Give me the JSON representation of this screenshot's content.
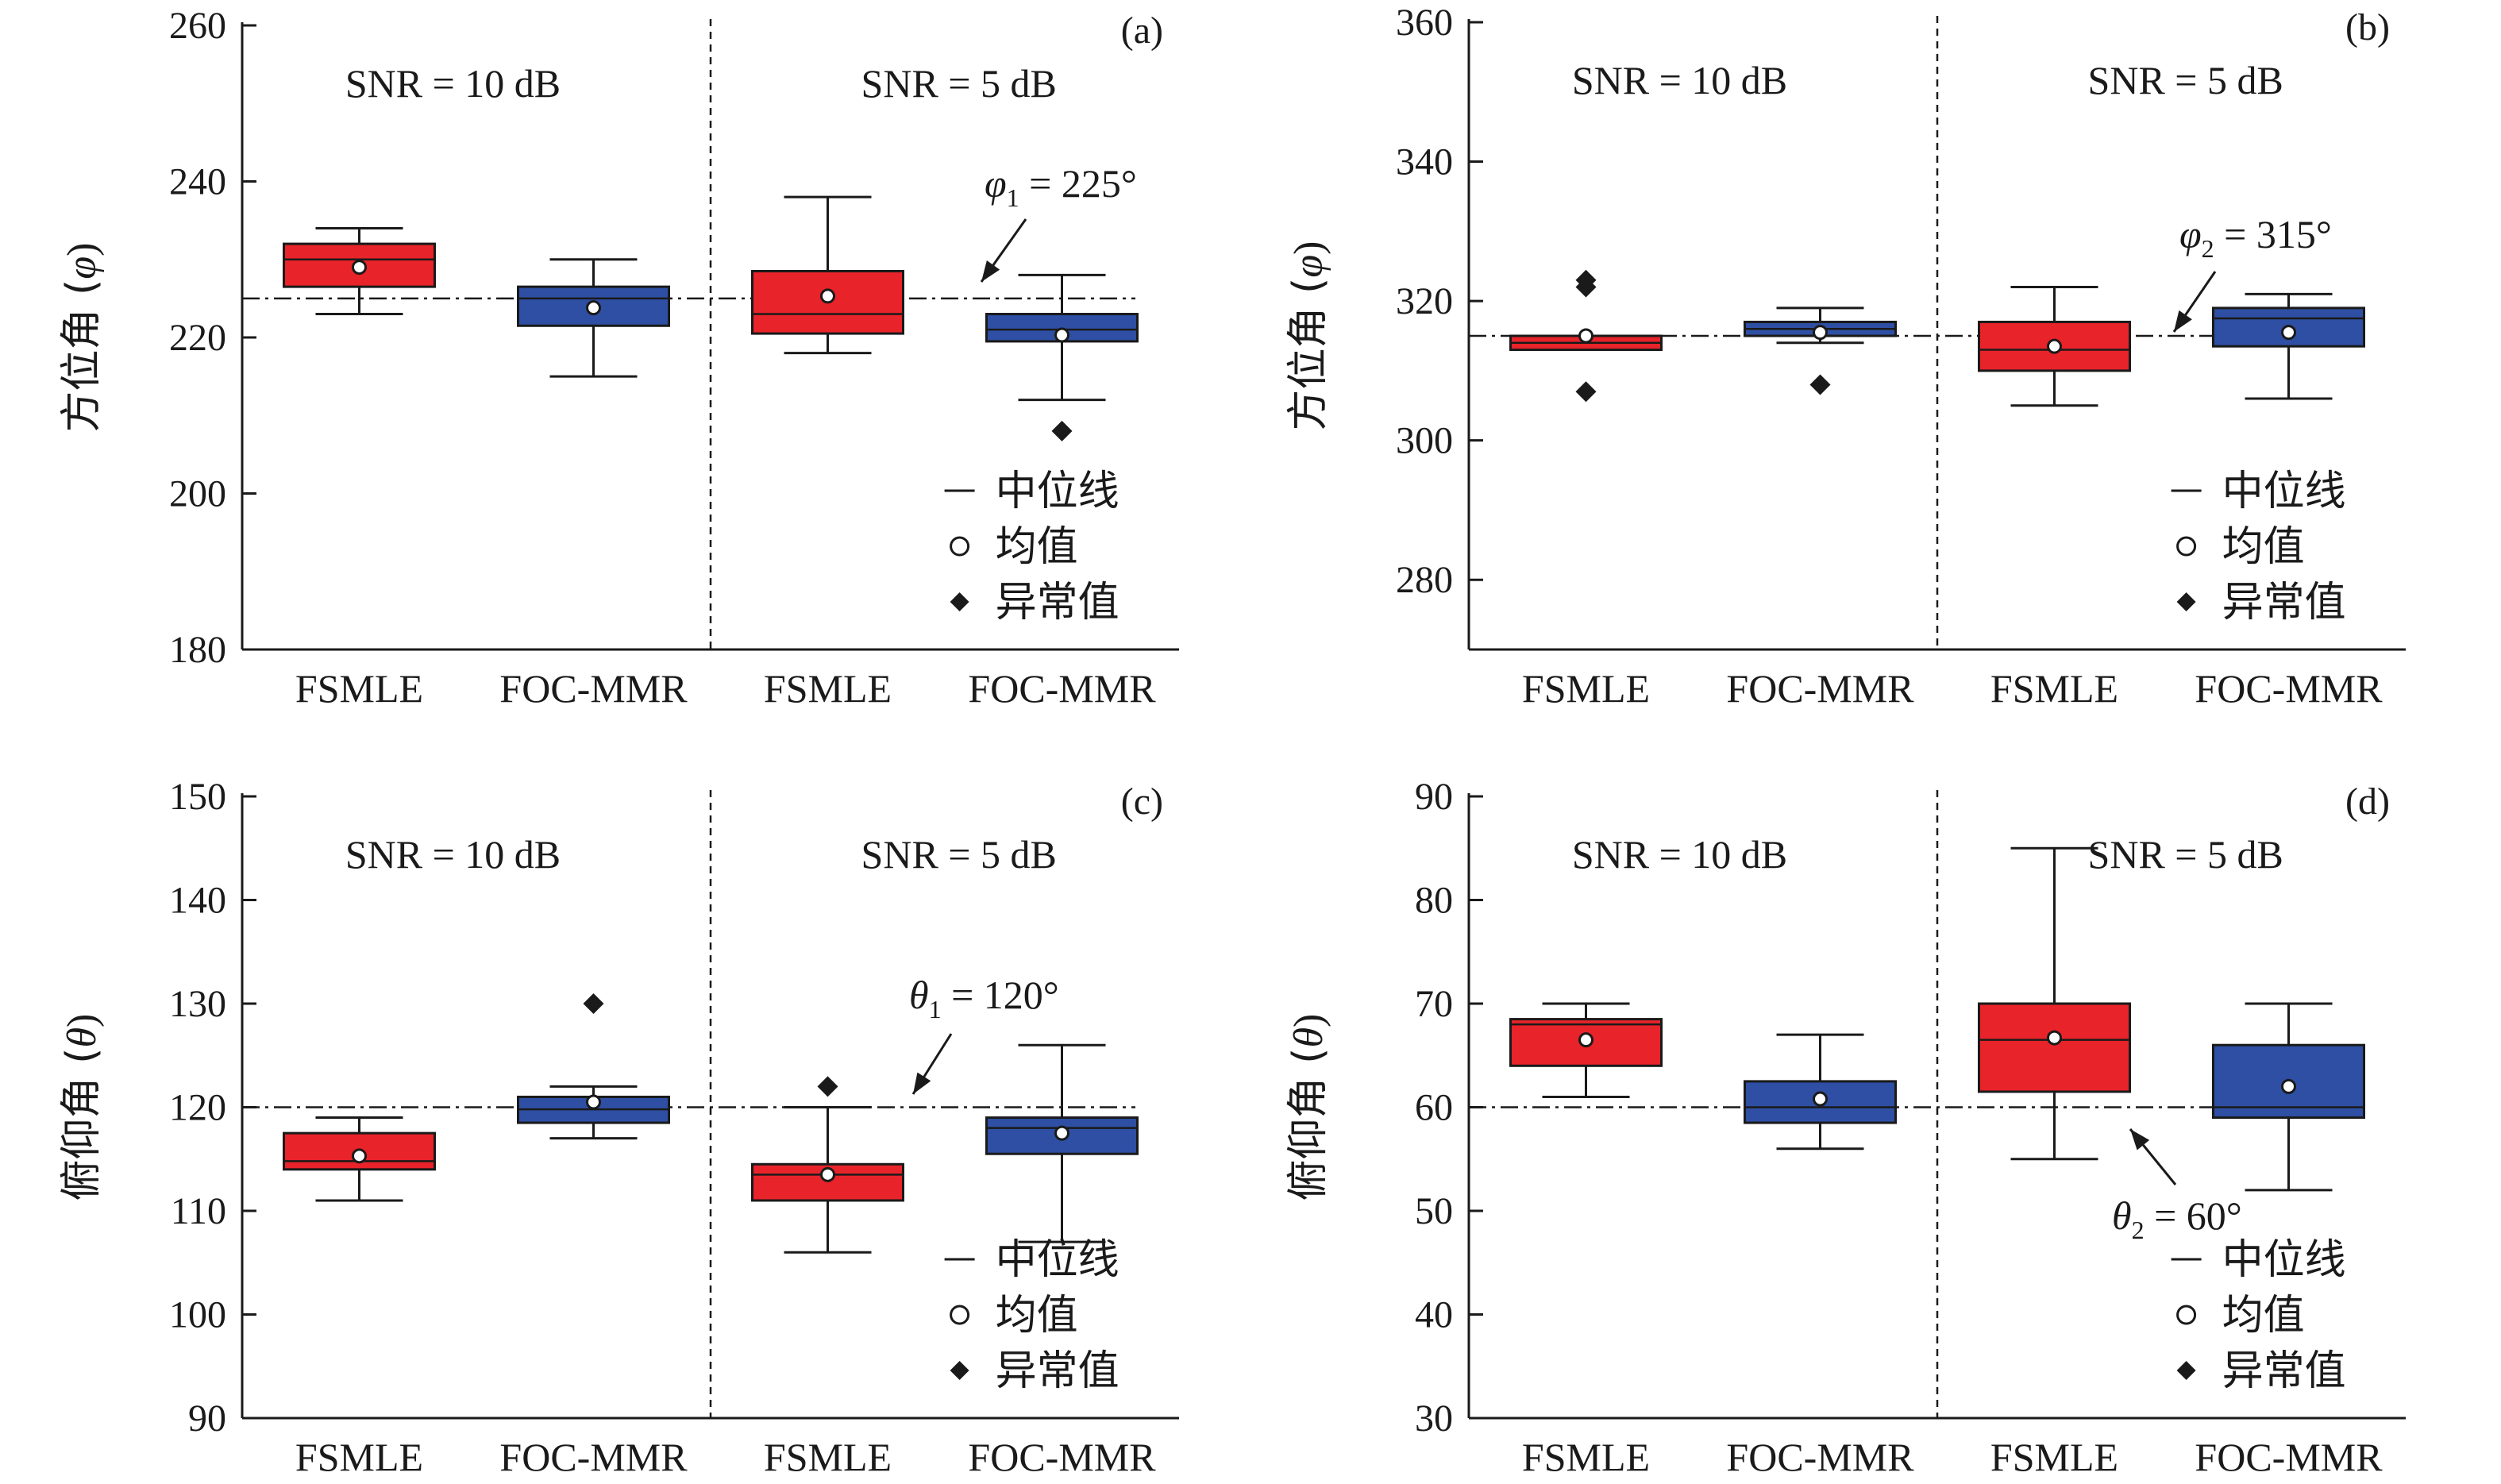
{
  "chart_data": [
    {
      "type": "box",
      "panel_label": "(a)",
      "ylabel_cjk": "方位角 (",
      "ylabel_sym": "φ",
      "ylabel_close": ")",
      "yticks": [
        "180",
        "200",
        "220",
        "240",
        "260"
      ],
      "ylim": [
        180,
        260
      ],
      "categories": [
        "FSMLE",
        "FOC-MMR",
        "FSMLE",
        "FOC-MMR"
      ],
      "groups": [
        "SNR = 10 dB",
        "SNR = 5 dB"
      ],
      "reference": {
        "value": 225,
        "sym": "φ",
        "sub": "1",
        "text": " = 225°"
      },
      "boxes": [
        {
          "method": "FSMLE",
          "snr": "10 dB",
          "min": 223,
          "q1": 226.5,
          "median": 230,
          "q3": 232,
          "max": 234,
          "mean": 229,
          "outliers": []
        },
        {
          "method": "FOC-MMR",
          "snr": "10 dB",
          "min": 215,
          "q1": 221.5,
          "median": 225,
          "q3": 226.5,
          "max": 230,
          "mean": 223.8,
          "outliers": []
        },
        {
          "method": "FSMLE",
          "snr": "5 dB",
          "min": 218,
          "q1": 220.5,
          "median": 223,
          "q3": 228.5,
          "max": 238,
          "mean": 225.3,
          "outliers": []
        },
        {
          "method": "FOC-MMR",
          "snr": "5 dB",
          "min": 212,
          "q1": 219.5,
          "median": 221,
          "q3": 223,
          "max": 228,
          "mean": 220.3,
          "outliers": [
            208
          ]
        }
      ]
    },
    {
      "type": "box",
      "panel_label": "(b)",
      "ylabel_cjk": "方位角 (",
      "ylabel_sym": "φ",
      "ylabel_close": ")",
      "yticks": [
        "280",
        "300",
        "320",
        "340",
        "360"
      ],
      "ylim": [
        270,
        360
      ],
      "categories": [
        "FSMLE",
        "FOC-MMR",
        "FSMLE",
        "FOC-MMR"
      ],
      "groups": [
        "SNR = 10 dB",
        "SNR = 5 dB"
      ],
      "reference": {
        "value": 315,
        "sym": "φ",
        "sub": "2",
        "text": " = 315°"
      },
      "boxes": [
        {
          "method": "FSMLE",
          "snr": "10 dB",
          "min": 313,
          "q1": 313,
          "median": 314,
          "q3": 315,
          "max": 315,
          "mean": 315,
          "outliers": [
            322,
            323,
            307
          ]
        },
        {
          "method": "FOC-MMR",
          "snr": "10 dB",
          "min": 314,
          "q1": 315,
          "median": 316,
          "q3": 317,
          "max": 319,
          "mean": 315.5,
          "outliers": [
            308
          ]
        },
        {
          "method": "FSMLE",
          "snr": "5 dB",
          "min": 305,
          "q1": 310,
          "median": 313,
          "q3": 317,
          "max": 322,
          "mean": 313.5,
          "outliers": []
        },
        {
          "method": "FOC-MMR",
          "snr": "5 dB",
          "min": 306,
          "q1": 313.5,
          "median": 317.5,
          "q3": 319,
          "max": 321,
          "mean": 315.5,
          "outliers": []
        }
      ]
    },
    {
      "type": "box",
      "panel_label": "(c)",
      "ylabel_cjk": "俯仰角 (",
      "ylabel_sym": "θ",
      "ylabel_close": ")",
      "yticks": [
        "90",
        "100",
        "110",
        "120",
        "130",
        "140",
        "150"
      ],
      "ylim": [
        90,
        150
      ],
      "categories": [
        "FSMLE",
        "FOC-MMR",
        "FSMLE",
        "FOC-MMR"
      ],
      "groups": [
        "SNR = 10 dB",
        "SNR = 5 dB"
      ],
      "reference": {
        "value": 120,
        "sym": "θ",
        "sub": "1",
        "text": " = 120°"
      },
      "boxes": [
        {
          "method": "FSMLE",
          "snr": "10 dB",
          "min": 111,
          "q1": 114,
          "median": 114.8,
          "q3": 117.5,
          "max": 119,
          "mean": 115.3,
          "outliers": []
        },
        {
          "method": "FOC-MMR",
          "snr": "10 dB",
          "min": 117,
          "q1": 118.5,
          "median": 119.8,
          "q3": 121,
          "max": 122,
          "mean": 120.5,
          "outliers": [
            130
          ]
        },
        {
          "method": "FSMLE",
          "snr": "5 dB",
          "min": 106,
          "q1": 111,
          "median": 113.5,
          "q3": 114.5,
          "max": 120,
          "mean": 113.5,
          "outliers": [
            122
          ]
        },
        {
          "method": "FOC-MMR",
          "snr": "5 dB",
          "min": 107,
          "q1": 115.5,
          "median": 118,
          "q3": 119,
          "max": 126,
          "mean": 117.5,
          "outliers": []
        }
      ]
    },
    {
      "type": "box",
      "panel_label": "(d)",
      "ylabel_cjk": "俯仰角 (",
      "ylabel_sym": "θ",
      "ylabel_close": ")",
      "yticks": [
        "30",
        "40",
        "50",
        "60",
        "70",
        "80",
        "90"
      ],
      "ylim": [
        30,
        90
      ],
      "categories": [
        "FSMLE",
        "FOC-MMR",
        "FSMLE",
        "FOC-MMR"
      ],
      "groups": [
        "SNR = 10 dB",
        "SNR = 5 dB"
      ],
      "reference": {
        "value": 60,
        "sym": "θ",
        "sub": "2",
        "text": " = 60°"
      },
      "boxes": [
        {
          "method": "FSMLE",
          "snr": "10 dB",
          "min": 61,
          "q1": 64,
          "median": 68,
          "q3": 68.5,
          "max": 70,
          "mean": 66.5,
          "outliers": []
        },
        {
          "method": "FOC-MMR",
          "snr": "10 dB",
          "min": 56,
          "q1": 58.5,
          "median": 60,
          "q3": 62.5,
          "max": 67,
          "mean": 60.8,
          "outliers": []
        },
        {
          "method": "FSMLE",
          "snr": "5 dB",
          "min": 55,
          "q1": 61.5,
          "median": 66.5,
          "q3": 70,
          "max": 85,
          "mean": 66.7,
          "outliers": []
        },
        {
          "method": "FOC-MMR",
          "snr": "5 dB",
          "min": 52,
          "q1": 59,
          "median": 60,
          "q3": 66,
          "max": 70,
          "mean": 62,
          "outliers": []
        }
      ]
    }
  ],
  "legend": [
    {
      "marker": "line",
      "label": "中位线"
    },
    {
      "marker": "circle",
      "label": "均值"
    },
    {
      "marker": "diamond",
      "label": "异常值"
    }
  ],
  "colors": {
    "fsmle": "#e8232a",
    "focmmr": "#2e4fa3",
    "axis": "#1a1a1a"
  }
}
